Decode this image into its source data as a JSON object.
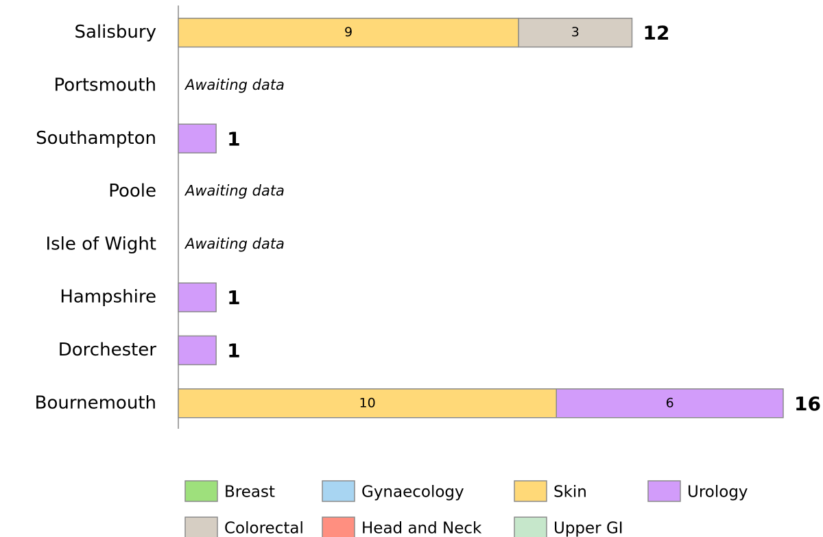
{
  "chart_data": {
    "type": "stacked-bar-horizontal",
    "categories": [
      "Salisbury",
      "Portsmouth",
      "Southampton",
      "Poole",
      "Isle of Wight",
      "Hampshire",
      "Dorchester",
      "Bournemouth"
    ],
    "series": [
      {
        "name": "Skin",
        "color": "#ffd978",
        "values": [
          9,
          null,
          0,
          null,
          null,
          0,
          0,
          10
        ]
      },
      {
        "name": "Colorectal",
        "color": "#d6cec3",
        "values": [
          3,
          null,
          0,
          null,
          null,
          0,
          0,
          0
        ]
      },
      {
        "name": "Urology",
        "color": "#d29cfa",
        "values": [
          0,
          null,
          1,
          null,
          null,
          1,
          1,
          6
        ]
      },
      {
        "name": "Breast",
        "color": "#9ee07c",
        "values": [
          0,
          null,
          0,
          null,
          null,
          0,
          0,
          0
        ]
      },
      {
        "name": "Gynaecology",
        "color": "#a8d5f2",
        "values": [
          0,
          null,
          0,
          null,
          null,
          0,
          0,
          0
        ]
      },
      {
        "name": "Head and Neck",
        "color": "#ff8f80",
        "values": [
          0,
          null,
          0,
          null,
          null,
          0,
          0,
          0
        ]
      },
      {
        "name": "Upper GI",
        "color": "#c6e7cb",
        "values": [
          0,
          null,
          0,
          null,
          null,
          0,
          0,
          0
        ]
      }
    ],
    "totals": [
      12,
      null,
      1,
      null,
      null,
      1,
      1,
      16
    ],
    "missing_label": "Awaiting data",
    "xlim": [
      0,
      16
    ]
  }
}
